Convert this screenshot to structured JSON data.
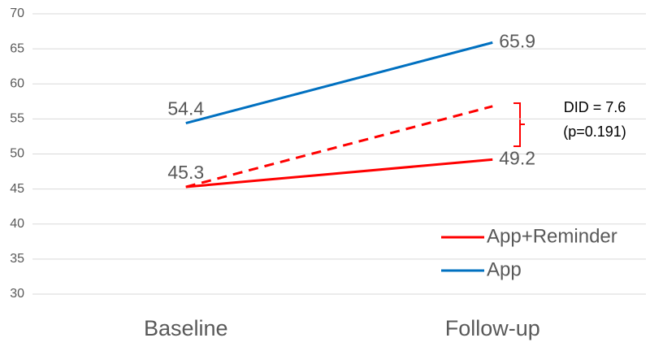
{
  "chart_data": {
    "type": "line",
    "categories": [
      "Baseline",
      "Follow-up"
    ],
    "series": [
      {
        "name": "App+Reminder",
        "color": "#ff0000",
        "values": [
          45.3,
          49.2
        ]
      },
      {
        "name": "App",
        "color": "#0070c0",
        "values": [
          54.4,
          65.9
        ]
      },
      {
        "color": "#ff0000",
        "dashed": true,
        "values": [
          45.3,
          56.8
        ]
      }
    ],
    "ylim": [
      30,
      70
    ],
    "yticks": [
      30,
      35,
      40,
      45,
      50,
      55,
      60,
      65,
      70
    ],
    "grid": true,
    "legend": "lower right",
    "annotations": [
      "DID = 7.6",
      "(p=0.191)"
    ]
  }
}
